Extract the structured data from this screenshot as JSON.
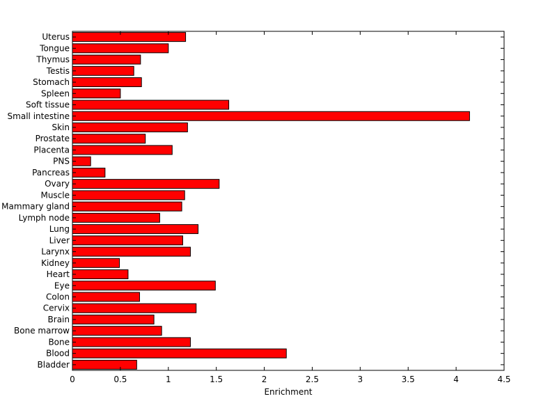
{
  "chart_data": {
    "type": "bar",
    "orientation": "horizontal",
    "xlabel": "Enrichment",
    "xlim": [
      0,
      4.5
    ],
    "xticks": [
      "0",
      "0.5",
      "1",
      "1.5",
      "2",
      "2.5",
      "3",
      "3.5",
      "4",
      "4.5"
    ],
    "bar_color": "#ff0000",
    "grid": false,
    "categories": [
      "Uterus",
      "Tongue",
      "Thymus",
      "Testis",
      "Stomach",
      "Spleen",
      "Soft tissue",
      "Small intestine",
      "Skin",
      "Prostate",
      "Placenta",
      "PNS",
      "Pancreas",
      "Ovary",
      "Muscle",
      "Mammary gland",
      "Lymph node",
      "Lung",
      "Liver",
      "Larynx",
      "Kidney",
      "Heart",
      "Eye",
      "Colon",
      "Cervix",
      "Brain",
      "Bone marrow",
      "Bone",
      "Blood",
      "Bladder"
    ],
    "values": [
      1.18,
      1.0,
      0.71,
      0.64,
      0.72,
      0.5,
      1.63,
      4.14,
      1.2,
      0.76,
      1.04,
      0.19,
      0.34,
      1.53,
      1.17,
      1.14,
      0.91,
      1.31,
      1.15,
      1.23,
      0.49,
      0.58,
      1.49,
      0.7,
      1.29,
      0.85,
      0.93,
      1.23,
      2.23,
      0.67
    ]
  }
}
